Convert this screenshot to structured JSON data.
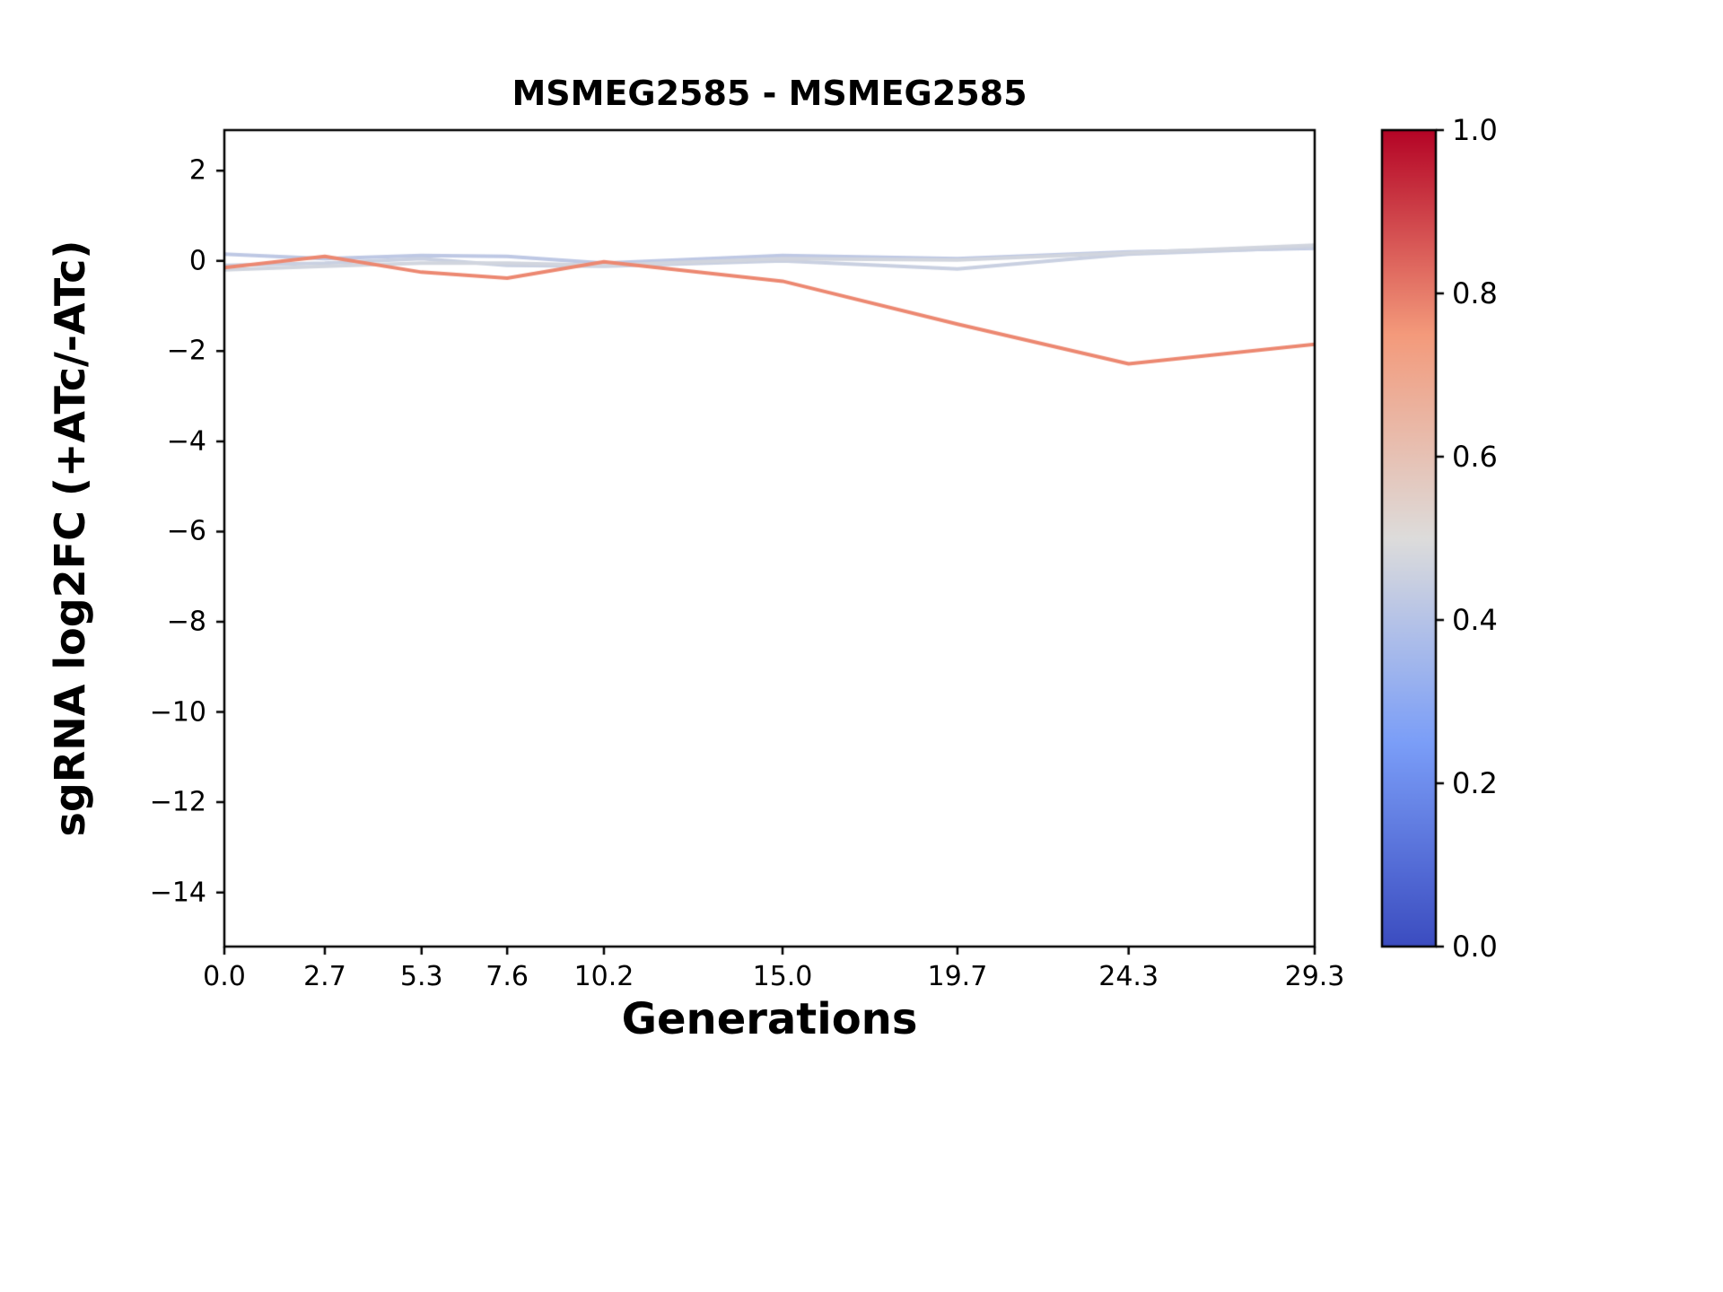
{
  "title": "MSMEG2585 - MSMEG2585",
  "chart_data": {
    "type": "line",
    "title": "MSMEG2585 - MSMEG2585",
    "xlabel": "Generations",
    "ylabel": "sgRNA log2FC (+ATc/-ATc)",
    "x": [
      0.0,
      2.7,
      5.3,
      7.6,
      10.2,
      15.0,
      19.7,
      24.3,
      29.3
    ],
    "xtick_labels": [
      "0.0",
      "2.7",
      "5.3",
      "7.6",
      "10.2",
      "15.0",
      "19.7",
      "24.3",
      "29.3"
    ],
    "ytick_values": [
      2,
      0,
      -2,
      -4,
      -6,
      -8,
      -10,
      -12,
      -14
    ],
    "ytick_labels": [
      "2",
      "0",
      "−2",
      "−4",
      "−6",
      "−8",
      "−10",
      "−12",
      "−14"
    ],
    "xlim": [
      0,
      29.3
    ],
    "ylim": [
      -15.2,
      2.9
    ],
    "grid": false,
    "legend": "none",
    "line_width": 4,
    "series": [
      {
        "name": "line-1",
        "cmap_value": 0.42,
        "values": [
          0.15,
          0.05,
          0.12,
          0.1,
          -0.05,
          0.12,
          0.05,
          0.2,
          0.28
        ]
      },
      {
        "name": "line-2",
        "cmap_value": 0.45,
        "values": [
          -0.1,
          -0.05,
          0.05,
          -0.1,
          -0.12,
          0.0,
          -0.18,
          0.15,
          0.3
        ]
      },
      {
        "name": "line-3",
        "cmap_value": 0.47,
        "values": [
          -0.2,
          -0.12,
          -0.05,
          -0.05,
          -0.1,
          0.05,
          0.02,
          0.18,
          0.35
        ]
      },
      {
        "name": "line-4",
        "cmap_value": 0.78,
        "values": [
          -0.15,
          0.1,
          -0.25,
          -0.38,
          -0.02,
          -0.45,
          -1.4,
          -2.28,
          -1.85
        ]
      }
    ],
    "colorbar": {
      "cmap": "coolwarm",
      "range": [
        0.0,
        1.0
      ],
      "tick_values": [
        1.0,
        0.8,
        0.6,
        0.4,
        0.2,
        0.0
      ],
      "tick_labels": [
        "1.0",
        "0.8",
        "0.6",
        "0.4",
        "0.2",
        "0.0"
      ]
    }
  }
}
